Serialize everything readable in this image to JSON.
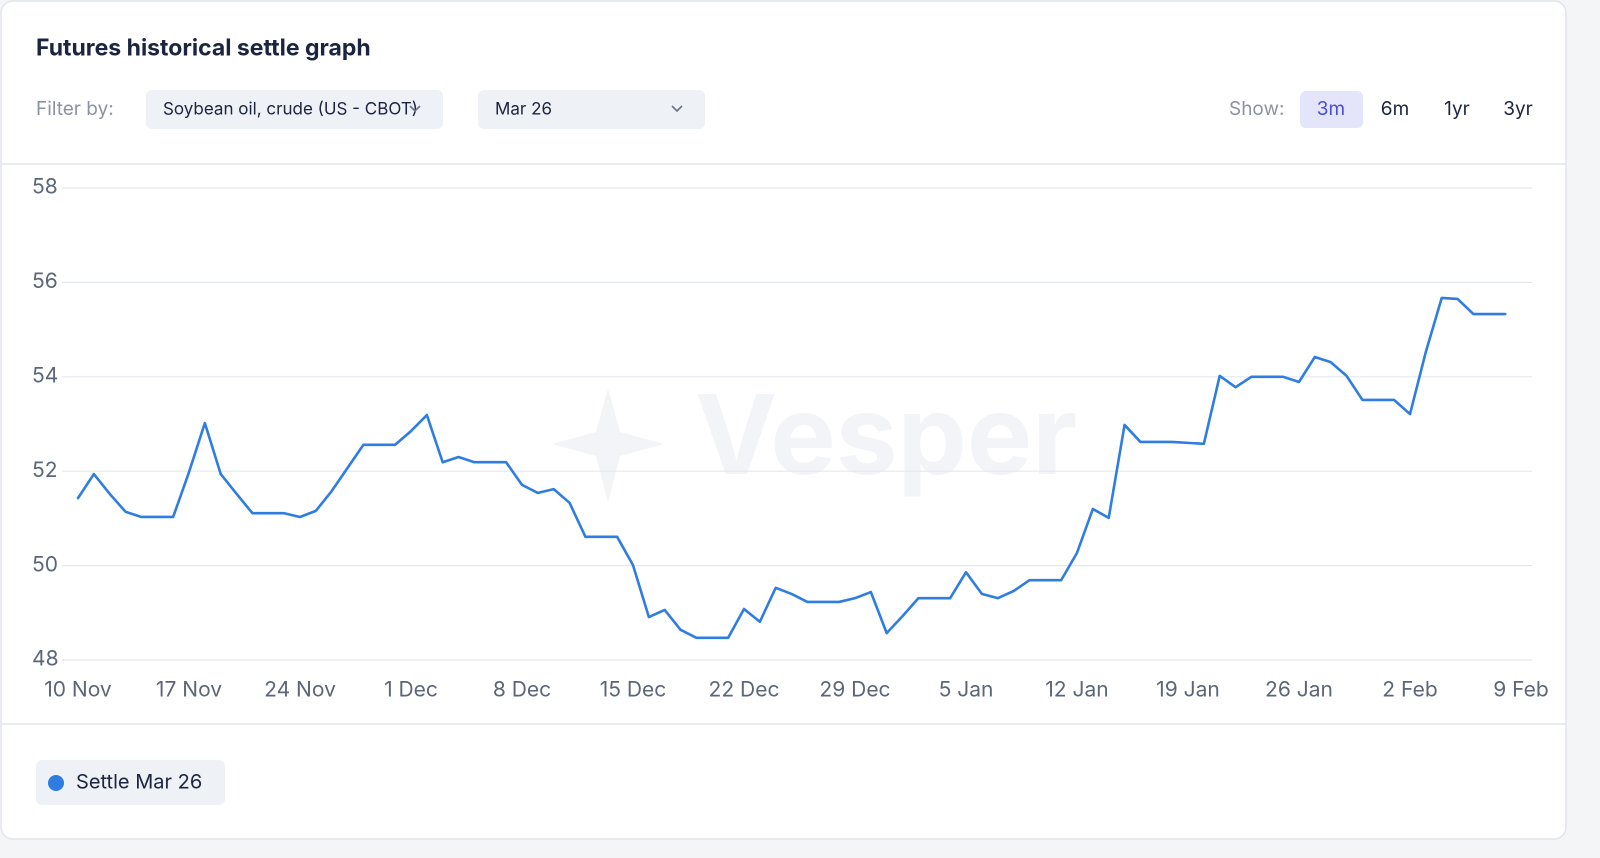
{
  "header": {
    "title": "Futures historical settle graph"
  },
  "filter": {
    "label": "Filter by:",
    "dropdowns": [
      "Soybean oil, crude (US - CBOT)",
      "Mar 26"
    ]
  },
  "show": {
    "label": "Show:",
    "options": [
      "3m",
      "6m",
      "1yr",
      "3yr"
    ]
  },
  "watermark": "Vesper",
  "chart_data": {
    "type": "line",
    "categories": [
      "10 Nov",
      null,
      null,
      null,
      null,
      null,
      null,
      "17 Nov",
      null,
      null,
      null,
      null,
      null,
      null,
      "24 Nov",
      null,
      null,
      null,
      null,
      null,
      null,
      "1 Dec",
      null,
      null,
      null,
      null,
      null,
      null,
      "8 Dec",
      null,
      null,
      null,
      null,
      null,
      null,
      "15 Dec",
      null,
      null,
      null,
      null,
      null,
      null,
      "22 Dec",
      null,
      null,
      null,
      null,
      null,
      null,
      "29 Dec",
      null,
      null,
      null,
      null,
      null,
      null,
      "5 Jan",
      null,
      null,
      null,
      null,
      null,
      null,
      "12 Jan",
      null,
      null,
      null,
      null,
      null,
      null,
      "19 Jan",
      null,
      null,
      null,
      null,
      null,
      null,
      "26 Jan",
      null,
      null,
      null,
      null,
      null,
      null,
      "2 Feb",
      null,
      null,
      null,
      null,
      null,
      null,
      "9 Feb"
    ],
    "series": [
      {
        "name": "Settle Mar 26",
        "color": "#2f7de1",
        "values": [
          51.43,
          51.94,
          51.52,
          51.14,
          51.03,
          51.03,
          51.03,
          51.98,
          53.02,
          51.94,
          51.52,
          51.11,
          51.11,
          51.11,
          51.03,
          51.16,
          51.58,
          52.07,
          52.56,
          52.56,
          52.56,
          52.85,
          53.19,
          52.19,
          52.3,
          52.19,
          52.19,
          52.19,
          51.71,
          51.54,
          51.62,
          51.33,
          50.61,
          50.61,
          50.61,
          50.01,
          48.91,
          49.06,
          48.64,
          48.47,
          48.47,
          48.47,
          49.08,
          48.81,
          49.53,
          49.4,
          49.23,
          49.23,
          49.23,
          49.31,
          49.44,
          48.57,
          48.93,
          49.31,
          49.31,
          49.31,
          49.86,
          49.4,
          49.31,
          49.46,
          49.69,
          49.69,
          49.69,
          50.27,
          51.2,
          51.01,
          52.98,
          52.62,
          52.62,
          52.62,
          52.6,
          52.58,
          54.02,
          53.78,
          54.0,
          54.0,
          54.0,
          53.89,
          54.42,
          54.31,
          54.02,
          53.51,
          53.51,
          53.51,
          53.21,
          54.53,
          55.67,
          55.65,
          55.33,
          55.33,
          55.33,
          null
        ]
      }
    ],
    "ylim": [
      48,
      58
    ],
    "yticks": [
      48,
      50,
      52,
      54,
      56,
      58
    ],
    "grid": true
  }
}
